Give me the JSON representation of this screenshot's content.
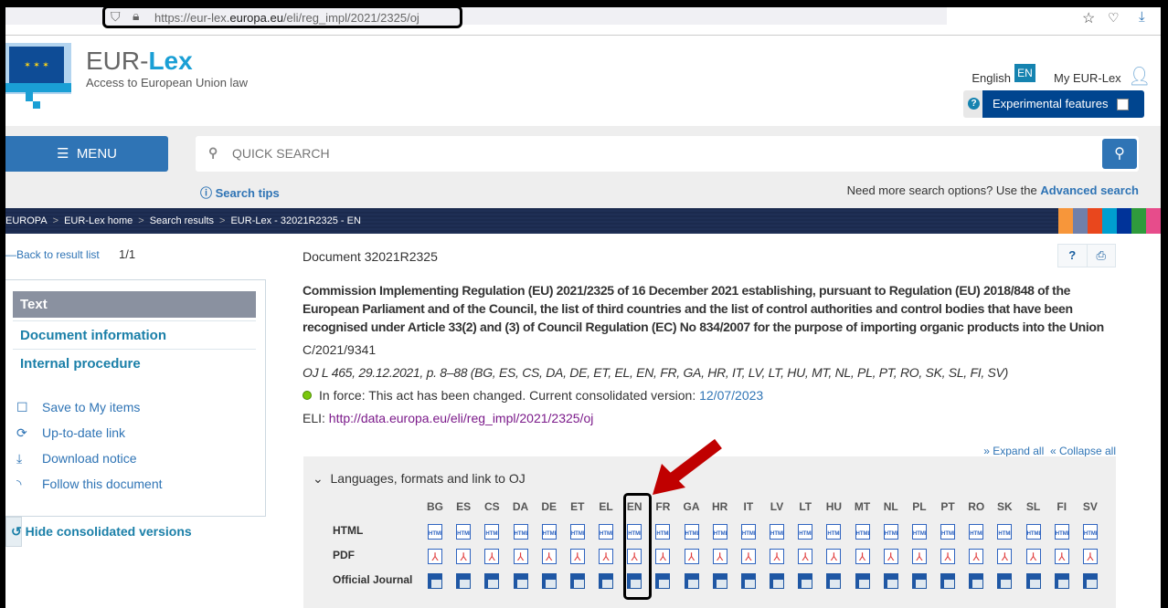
{
  "browser": {
    "url_prefix": "https://eur-lex.",
    "url_domain": "europa.eu",
    "url_path": "/eli/reg_impl/2021/2325/oj"
  },
  "header": {
    "logo_eur": "EUR-",
    "logo_lex": "Lex",
    "tagline": "Access to European Union law",
    "language": "English",
    "language_code": "EN",
    "my_eurlex": "My EUR-Lex",
    "experimental": "Experimental features"
  },
  "search": {
    "menu": "MENU",
    "placeholder": "QUICK SEARCH",
    "tips": "Search tips",
    "more_options": "Need more search options? Use the ",
    "advanced": "Advanced search"
  },
  "breadcrumb": [
    "EUROPA",
    "EUR-Lex home",
    "Search results",
    "EUR-Lex - 32021R2325 - EN"
  ],
  "brand_stripes": [
    "#f7963a",
    "#7080aa",
    "#e9471d",
    "#009fcf",
    "#003399",
    "#2f9b3c",
    "#e74c8b"
  ],
  "sidebar": {
    "back": "Back to result list",
    "count": "1/1",
    "nav": [
      "Text",
      "Document information",
      "Internal procedure"
    ],
    "actions": [
      "Save to My items",
      "Up-to-date link",
      "Download notice",
      "Follow this document"
    ],
    "hide": "Hide consolidated versions"
  },
  "document": {
    "id": "Document 32021R2325",
    "title": "Commission Implementing Regulation (EU) 2021/2325 of 16 December 2021 establishing, pursuant to Regulation (EU) 2018/848 of the European Parliament and of the Council, the list of third countries and the list of control authorities and control bodies that have been recognised under Article 33(2) and (3) of Council Regulation (EC) No 834/2007 for the purpose of importing organic products into the Union",
    "ref": "C/2021/9341",
    "oj": "OJ L 465, 29.12.2021, p. 8–88 (BG, ES, CS, DA, DE, ET, EL, EN, FR, GA, HR, IT, LV, LT, HU, MT, NL, PL, PT, RO, SK, SL, FI, SV)",
    "status": "In force: This act has been changed. Current consolidated version: ",
    "status_date": "12/07/2023",
    "eli_label": "ELI: ",
    "eli": "http://data.europa.eu/eli/reg_impl/2021/2325/oj",
    "expand": "Expand all",
    "collapse": "Collapse all"
  },
  "languages": {
    "heading": "Languages, formats and link to OJ",
    "codes": [
      "BG",
      "ES",
      "CS",
      "DA",
      "DE",
      "ET",
      "EL",
      "EN",
      "FR",
      "GA",
      "HR",
      "IT",
      "LV",
      "LT",
      "HU",
      "MT",
      "NL",
      "PL",
      "PT",
      "RO",
      "SK",
      "SL",
      "FI",
      "SV"
    ],
    "rows": [
      "HTML",
      "PDF",
      "Official Journal"
    ],
    "highlighted": "EN"
  }
}
